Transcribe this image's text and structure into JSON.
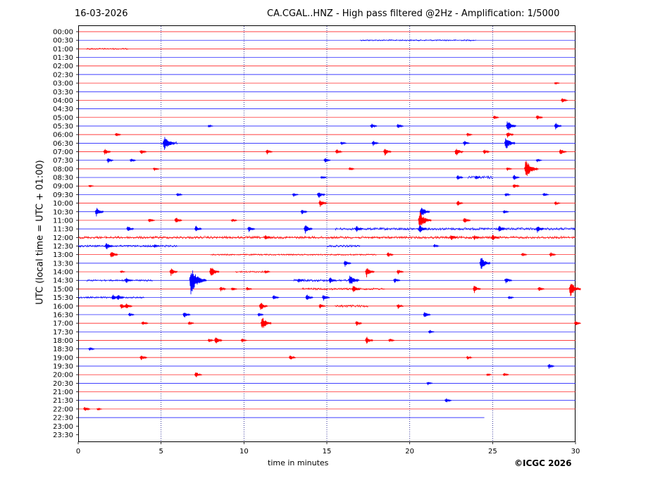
{
  "header": {
    "date": "16-03-2026",
    "title": "CA.CGAL..HNZ - High pass filtered @2Hz - Amplification: 1/5000",
    "copyright": "©ICGC 2026"
  },
  "chart_data": {
    "type": "line",
    "title": "CA.CGAL..HNZ - High pass filtered @2Hz - Amplification: 1/5000",
    "xlabel": "time in minutes",
    "ylabel": "UTC (local time = UTC + 01:00)",
    "xlim": [
      0,
      30
    ],
    "x_ticks": [
      "0",
      "5",
      "10",
      "15",
      "20",
      "25",
      "30"
    ],
    "y_ticks": [
      "00:00",
      "00:30",
      "01:00",
      "01:30",
      "02:00",
      "02:30",
      "03:00",
      "03:30",
      "04:00",
      "04:30",
      "05:00",
      "05:30",
      "06:00",
      "06:30",
      "07:00",
      "07:30",
      "08:00",
      "08:30",
      "09:00",
      "09:30",
      "10:00",
      "10:30",
      "11:00",
      "11:30",
      "12:00",
      "12:30",
      "13:00",
      "13:30",
      "14:00",
      "14:30",
      "15:00",
      "15:30",
      "16:00",
      "16:30",
      "17:00",
      "17:30",
      "18:00",
      "18:30",
      "19:00",
      "19:30",
      "20:00",
      "20:30",
      "21:00",
      "21:30",
      "22:00",
      "22:30",
      "23:00",
      "23:30"
    ],
    "grid": "vertical dotted lines at 5-minute intervals",
    "colors": {
      "even_row": "#ff0000",
      "odd_row": "#0000ff",
      "grid": "#000080"
    },
    "last_trace": {
      "row": "22:30",
      "end_minute": 24.5
    },
    "events": [
      {
        "row": "03:00",
        "t": 28.8,
        "a": 2
      },
      {
        "row": "04:00",
        "t": 29.2,
        "a": 4
      },
      {
        "row": "05:00",
        "t": 25.1,
        "a": 3
      },
      {
        "row": "05:00",
        "t": 27.7,
        "a": 4
      },
      {
        "row": "05:30",
        "t": 7.9,
        "a": 2
      },
      {
        "row": "05:30",
        "t": 17.7,
        "a": 4
      },
      {
        "row": "05:30",
        "t": 19.3,
        "a": 4
      },
      {
        "row": "05:30",
        "t": 25.9,
        "a": 9
      },
      {
        "row": "05:30",
        "t": 28.8,
        "a": 5
      },
      {
        "row": "06:00",
        "t": 2.3,
        "a": 3
      },
      {
        "row": "06:00",
        "t": 23.5,
        "a": 3
      },
      {
        "row": "06:00",
        "t": 25.9,
        "a": 5
      },
      {
        "row": "06:30",
        "t": 5.2,
        "a": 12
      },
      {
        "row": "06:30",
        "t": 15.9,
        "a": 3
      },
      {
        "row": "06:30",
        "t": 17.8,
        "a": 4
      },
      {
        "row": "06:30",
        "t": 23.3,
        "a": 4
      },
      {
        "row": "06:30",
        "t": 25.8,
        "a": 10
      },
      {
        "row": "07:00",
        "t": 1.6,
        "a": 5
      },
      {
        "row": "07:00",
        "t": 3.8,
        "a": 4
      },
      {
        "row": "07:00",
        "t": 11.4,
        "a": 4
      },
      {
        "row": "07:00",
        "t": 15.6,
        "a": 4
      },
      {
        "row": "07:00",
        "t": 18.5,
        "a": 6
      },
      {
        "row": "07:00",
        "t": 22.8,
        "a": 7
      },
      {
        "row": "07:00",
        "t": 24.5,
        "a": 4
      },
      {
        "row": "07:00",
        "t": 29.1,
        "a": 5
      },
      {
        "row": "07:30",
        "t": 1.8,
        "a": 4
      },
      {
        "row": "07:30",
        "t": 3.2,
        "a": 3
      },
      {
        "row": "07:30",
        "t": 14.9,
        "a": 4
      },
      {
        "row": "07:30",
        "t": 27.7,
        "a": 3
      },
      {
        "row": "08:00",
        "t": 4.6,
        "a": 3
      },
      {
        "row": "08:00",
        "t": 16.4,
        "a": 3
      },
      {
        "row": "08:00",
        "t": 25.9,
        "a": 3
      },
      {
        "row": "08:00",
        "t": 27.0,
        "a": 14
      },
      {
        "row": "08:00",
        "t": 27.5,
        "a": 3
      },
      {
        "row": "08:30",
        "t": 14.7,
        "a": 3
      },
      {
        "row": "08:30",
        "t": 22.9,
        "a": 4
      },
      {
        "row": "08:30",
        "t": 24.0,
        "a": 3
      },
      {
        "row": "08:30",
        "t": 26.3,
        "a": 4
      },
      {
        "row": "09:00",
        "t": 0.7,
        "a": 2
      },
      {
        "row": "09:00",
        "t": 26.3,
        "a": 4
      },
      {
        "row": "09:30",
        "t": 6.0,
        "a": 3
      },
      {
        "row": "09:30",
        "t": 13.0,
        "a": 3
      },
      {
        "row": "09:30",
        "t": 14.5,
        "a": 6
      },
      {
        "row": "09:30",
        "t": 25.8,
        "a": 3
      },
      {
        "row": "09:30",
        "t": 28.1,
        "a": 3
      },
      {
        "row": "10:00",
        "t": 14.6,
        "a": 6
      },
      {
        "row": "10:00",
        "t": 22.9,
        "a": 4
      },
      {
        "row": "10:00",
        "t": 28.8,
        "a": 3
      },
      {
        "row": "10:30",
        "t": 1.1,
        "a": 7
      },
      {
        "row": "10:30",
        "t": 13.5,
        "a": 4
      },
      {
        "row": "10:30",
        "t": 20.7,
        "a": 9
      },
      {
        "row": "10:30",
        "t": 25.7,
        "a": 3
      },
      {
        "row": "11:00",
        "t": 4.3,
        "a": 4
      },
      {
        "row": "11:00",
        "t": 5.9,
        "a": 5
      },
      {
        "row": "11:00",
        "t": 9.3,
        "a": 3
      },
      {
        "row": "11:00",
        "t": 20.6,
        "a": 14
      },
      {
        "row": "11:00",
        "t": 23.3,
        "a": 5
      },
      {
        "row": "11:30",
        "t": 3.0,
        "a": 5
      },
      {
        "row": "11:30",
        "t": 7.1,
        "a": 5
      },
      {
        "row": "11:30",
        "t": 10.3,
        "a": 5
      },
      {
        "row": "11:30",
        "t": 13.7,
        "a": 7
      },
      {
        "row": "11:30",
        "t": 16.8,
        "a": 5
      },
      {
        "row": "11:30",
        "t": 20.6,
        "a": 7
      },
      {
        "row": "11:30",
        "t": 25.4,
        "a": 5
      },
      {
        "row": "11:30",
        "t": 27.7,
        "a": 6
      },
      {
        "row": "12:00",
        "t": 11.3,
        "a": 4
      },
      {
        "row": "12:00",
        "t": 22.5,
        "a": 5
      },
      {
        "row": "12:00",
        "t": 23.9,
        "a": 4
      },
      {
        "row": "12:00",
        "t": 25.0,
        "a": 5
      },
      {
        "row": "12:30",
        "t": 1.7,
        "a": 6
      },
      {
        "row": "12:30",
        "t": 4.6,
        "a": 3
      },
      {
        "row": "12:30",
        "t": 21.5,
        "a": 3
      },
      {
        "row": "13:00",
        "t": 2.0,
        "a": 6
      },
      {
        "row": "13:00",
        "t": 18.7,
        "a": 4
      },
      {
        "row": "13:00",
        "t": 26.8,
        "a": 3
      },
      {
        "row": "13:00",
        "t": 28.5,
        "a": 4
      },
      {
        "row": "13:30",
        "t": 16.1,
        "a": 5
      },
      {
        "row": "13:30",
        "t": 24.3,
        "a": 10
      },
      {
        "row": "14:00",
        "t": 2.6,
        "a": 2
      },
      {
        "row": "14:00",
        "t": 5.6,
        "a": 6
      },
      {
        "row": "14:00",
        "t": 8.0,
        "a": 9
      },
      {
        "row": "14:00",
        "t": 11.3,
        "a": 3
      },
      {
        "row": "14:00",
        "t": 17.4,
        "a": 8
      },
      {
        "row": "14:00",
        "t": 19.3,
        "a": 4
      },
      {
        "row": "14:30",
        "t": 2.9,
        "a": 5
      },
      {
        "row": "14:30",
        "t": 6.8,
        "a": 20
      },
      {
        "row": "14:30",
        "t": 13.3,
        "a": 4
      },
      {
        "row": "14:30",
        "t": 15.2,
        "a": 5
      },
      {
        "row": "14:30",
        "t": 16.4,
        "a": 9
      },
      {
        "row": "14:30",
        "t": 19.1,
        "a": 4
      },
      {
        "row": "14:30",
        "t": 25.8,
        "a": 5
      },
      {
        "row": "15:00",
        "t": 8.6,
        "a": 4
      },
      {
        "row": "15:00",
        "t": 9.3,
        "a": 3
      },
      {
        "row": "15:00",
        "t": 10.2,
        "a": 3
      },
      {
        "row": "15:00",
        "t": 16.6,
        "a": 6
      },
      {
        "row": "15:00",
        "t": 23.9,
        "a": 6
      },
      {
        "row": "15:00",
        "t": 27.8,
        "a": 4
      },
      {
        "row": "15:00",
        "t": 29.7,
        "a": 12
      },
      {
        "row": "15:30",
        "t": 2.1,
        "a": 5
      },
      {
        "row": "15:30",
        "t": 2.4,
        "a": 5
      },
      {
        "row": "15:30",
        "t": 11.8,
        "a": 4
      },
      {
        "row": "15:30",
        "t": 13.8,
        "a": 5
      },
      {
        "row": "15:30",
        "t": 14.8,
        "a": 5
      },
      {
        "row": "15:30",
        "t": 26.0,
        "a": 3
      },
      {
        "row": "16:00",
        "t": 2.6,
        "a": 5
      },
      {
        "row": "16:00",
        "t": 2.9,
        "a": 5
      },
      {
        "row": "16:00",
        "t": 11.0,
        "a": 7
      },
      {
        "row": "16:00",
        "t": 14.6,
        "a": 4
      },
      {
        "row": "16:00",
        "t": 19.3,
        "a": 4
      },
      {
        "row": "16:30",
        "t": 3.1,
        "a": 3
      },
      {
        "row": "16:30",
        "t": 6.4,
        "a": 5
      },
      {
        "row": "16:30",
        "t": 10.9,
        "a": 3
      },
      {
        "row": "16:30",
        "t": 20.9,
        "a": 5
      },
      {
        "row": "17:00",
        "t": 3.9,
        "a": 4
      },
      {
        "row": "17:00",
        "t": 6.7,
        "a": 3
      },
      {
        "row": "17:00",
        "t": 11.1,
        "a": 10
      },
      {
        "row": "17:00",
        "t": 16.8,
        "a": 4
      },
      {
        "row": "17:00",
        "t": 30.0,
        "a": 4
      },
      {
        "row": "17:30",
        "t": 21.2,
        "a": 3
      },
      {
        "row": "18:00",
        "t": 7.9,
        "a": 3
      },
      {
        "row": "18:00",
        "t": 8.3,
        "a": 6
      },
      {
        "row": "18:00",
        "t": 9.9,
        "a": 3
      },
      {
        "row": "18:00",
        "t": 17.4,
        "a": 6
      },
      {
        "row": "18:00",
        "t": 18.8,
        "a": 3
      },
      {
        "row": "18:30",
        "t": 0.7,
        "a": 3
      },
      {
        "row": "19:00",
        "t": 3.8,
        "a": 5
      },
      {
        "row": "19:00",
        "t": 12.8,
        "a": 4
      },
      {
        "row": "19:00",
        "t": 23.5,
        "a": 3
      },
      {
        "row": "19:30",
        "t": 28.4,
        "a": 4
      },
      {
        "row": "20:00",
        "t": 7.1,
        "a": 5
      },
      {
        "row": "20:00",
        "t": 24.7,
        "a": 2
      },
      {
        "row": "20:00",
        "t": 25.7,
        "a": 3
      },
      {
        "row": "20:30",
        "t": 21.1,
        "a": 3
      },
      {
        "row": "21:30",
        "t": 22.2,
        "a": 4
      },
      {
        "row": "22:00",
        "t": 0.4,
        "a": 4
      },
      {
        "row": "22:00",
        "t": 1.2,
        "a": 2
      }
    ],
    "noisy_segments": [
      {
        "row": "00:30",
        "t0": 17.0,
        "t1": 24.0,
        "a": 1.0
      },
      {
        "row": "01:00",
        "t0": 0.5,
        "t1": 3.0,
        "a": 1.0
      },
      {
        "row": "06:30",
        "t0": 5.0,
        "t1": 6.0,
        "a": 2.0
      },
      {
        "row": "08:30",
        "t0": 23.5,
        "t1": 25.0,
        "a": 2.2
      },
      {
        "row": "11:30",
        "t0": 15.5,
        "t1": 30.0,
        "a": 1.8
      },
      {
        "row": "12:00",
        "t0": 0.0,
        "t1": 30.0,
        "a": 1.8
      },
      {
        "row": "12:30",
        "t0": 0.0,
        "t1": 6.0,
        "a": 1.5
      },
      {
        "row": "12:30",
        "t0": 15.0,
        "t1": 17.0,
        "a": 1.6
      },
      {
        "row": "13:00",
        "t0": 8.0,
        "t1": 18.0,
        "a": 1.0
      },
      {
        "row": "14:00",
        "t0": 9.5,
        "t1": 11.5,
        "a": 1.2
      },
      {
        "row": "14:30",
        "t0": 0.5,
        "t1": 4.5,
        "a": 1.2
      },
      {
        "row": "14:30",
        "t0": 13.0,
        "t1": 17.0,
        "a": 1.8
      },
      {
        "row": "15:00",
        "t0": 13.5,
        "t1": 18.5,
        "a": 1.5
      },
      {
        "row": "15:30",
        "t0": 0.0,
        "t1": 4.0,
        "a": 1.2
      },
      {
        "row": "16:00",
        "t0": 15.5,
        "t1": 17.5,
        "a": 1.8
      }
    ]
  }
}
